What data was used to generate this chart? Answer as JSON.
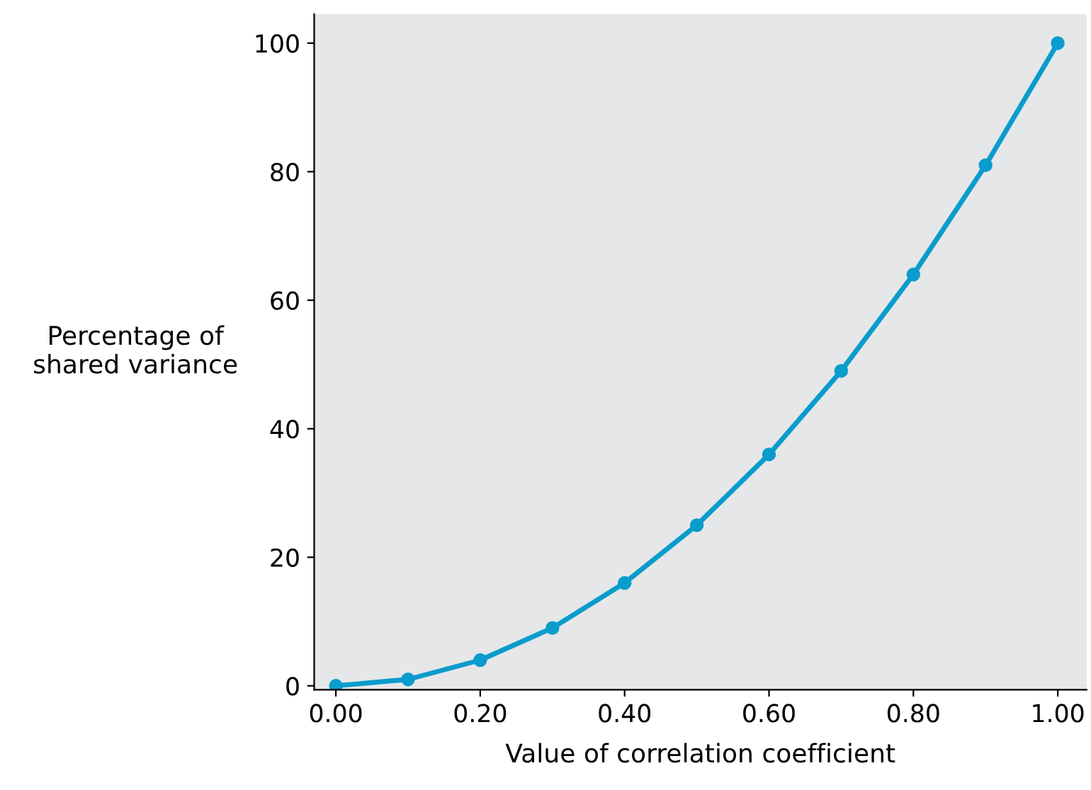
{
  "chart_data": {
    "type": "line",
    "xlabel": "Value of correlation coefficient",
    "ylabel": "Percentage of\nshared variance",
    "x": [
      0,
      0.1,
      0.2,
      0.3,
      0.4,
      0.5,
      0.6,
      0.7,
      0.8,
      0.9,
      1.0
    ],
    "series": [
      {
        "color": "#0a9ccc",
        "values": [
          0,
          1,
          4,
          9,
          16,
          25,
          36,
          49,
          64,
          81,
          100
        ]
      }
    ],
    "xlim": [
      -0.03,
      1.04
    ],
    "ylim": [
      -0.6,
      104.5
    ],
    "xticks": [
      {
        "value": 0,
        "label": "0.00"
      },
      {
        "value": 0.2,
        "label": "0.20"
      },
      {
        "value": 0.4,
        "label": "0.40"
      },
      {
        "value": 0.6,
        "label": "0.60"
      },
      {
        "value": 0.8,
        "label": "0.80"
      },
      {
        "value": 1.0,
        "label": "1.00"
      }
    ],
    "yticks": [
      0,
      20,
      40,
      60,
      80,
      100
    ],
    "marker": "circle",
    "line_style": "solid",
    "grid": false,
    "legend": false
  }
}
